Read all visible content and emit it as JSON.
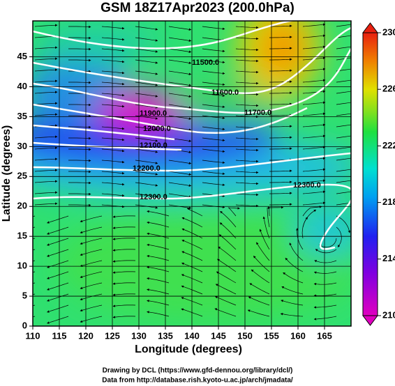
{
  "title": "GSM 18Z17Apr2023 (200.0hPa)",
  "map": {
    "xlabel": "Longitude (degrees)",
    "ylabel": "Latitude  (degrees)",
    "xlim": [
      110,
      170
    ],
    "ylim": [
      0,
      51
    ],
    "xticks": [
      110,
      115,
      120,
      125,
      130,
      135,
      140,
      145,
      150,
      155,
      160,
      165
    ],
    "yticks": [
      0,
      5,
      10,
      15,
      20,
      25,
      30,
      35,
      40,
      45
    ]
  },
  "contour_labels": [
    "11500.0",
    "11600.0",
    "11700.0",
    "11900.0",
    "12000.0",
    "12100.0",
    "12200.0",
    "12300.0",
    "12300.0"
  ],
  "colorbar": {
    "lim": [
      210,
      230
    ],
    "ticks": [
      210,
      214,
      218,
      222,
      226,
      230
    ]
  },
  "credits": [
    "Drawing by DCL (https://www.gfd-dennou.org/library/dcl/)",
    "Data from http://database.rish.kyoto-u.ac.jp/arch/jmadata/"
  ]
}
